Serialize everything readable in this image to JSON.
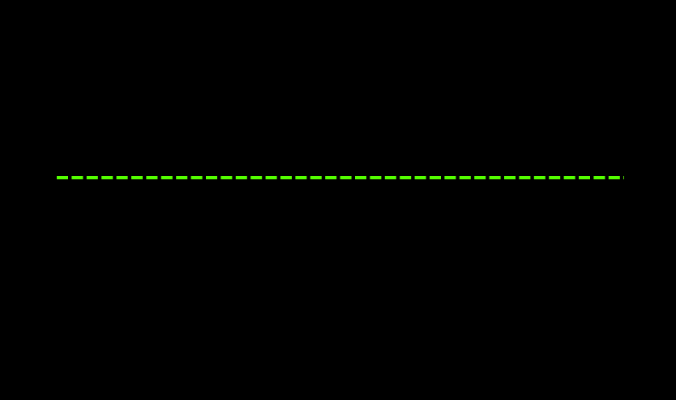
{
  "chart_data": {
    "type": "line",
    "background_color": "#000000",
    "series": [
      {
        "style": "dashed",
        "color": "#55ff00"
      }
    ],
    "grid": false
  }
}
